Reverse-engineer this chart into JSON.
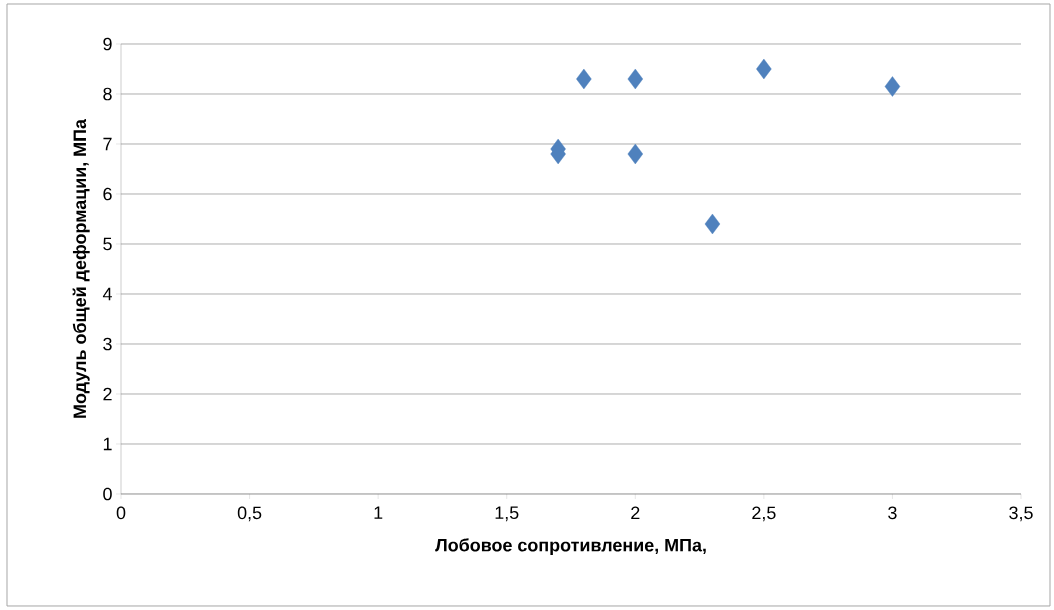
{
  "chart_data": {
    "type": "scatter",
    "xlabel": "Лобовое сопротивление, МПа,",
    "ylabel": "Модуль общей деформации, МПа",
    "x": [
      1.7,
      1.7,
      1.8,
      2.0,
      2.0,
      2.3,
      2.5,
      3.0
    ],
    "values": [
      6.9,
      6.8,
      8.3,
      8.3,
      6.8,
      5.4,
      8.5,
      8.15
    ],
    "color": "#4f81bd",
    "marker": "diamond",
    "xlim": [
      0,
      3.5
    ],
    "xticks": [
      0,
      {
        "value": 0.5,
        "label": "0,5"
      },
      1,
      {
        "value": 1.5,
        "label": "1,5"
      },
      2,
      {
        "value": 2.5,
        "label": "2,5"
      },
      3,
      {
        "value": 3.5,
        "label": "3,5"
      }
    ],
    "ylim": [
      0,
      9
    ],
    "yticks": [
      0,
      1,
      2,
      3,
      4,
      5,
      6,
      7,
      8,
      9
    ],
    "grid": "y"
  }
}
